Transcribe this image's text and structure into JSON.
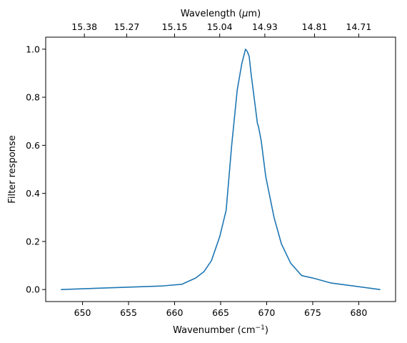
{
  "chart_data": {
    "type": "line",
    "xlabel": "Wavenumber (cm",
    "xlabel_sup": "−1",
    "xlabel_end": ")",
    "ylabel": "Filter response",
    "top_xlabel": "Wavelength (",
    "top_xlabel_mu": "μ",
    "top_xlabel_end": "m)",
    "xlim": [
      646.0,
      684.0
    ],
    "ylim": [
      -0.05,
      1.05
    ],
    "grid": false,
    "x_ticks": [
      650,
      655,
      660,
      665,
      670,
      675,
      680
    ],
    "y_ticks": [
      0.0,
      0.2,
      0.4,
      0.6,
      0.8,
      1.0
    ],
    "y_tick_labels": [
      "0.0",
      "0.2",
      "0.4",
      "0.6",
      "0.8",
      "1.0"
    ],
    "top_ticks": [
      {
        "x": 650.2,
        "label": "15.38"
      },
      {
        "x": 654.8,
        "label": "15.27"
      },
      {
        "x": 660.0,
        "label": "15.15"
      },
      {
        "x": 664.9,
        "label": "15.04"
      },
      {
        "x": 669.8,
        "label": "14.93"
      },
      {
        "x": 675.2,
        "label": "14.81"
      },
      {
        "x": 680.0,
        "label": "14.71"
      }
    ],
    "series": [
      {
        "color": "#1f77b4",
        "x": [
          647.7,
          658.7,
          660.8,
          662.3,
          663.2,
          664.0,
          664.9,
          665.6,
          666.2,
          666.8,
          667.3,
          667.7,
          667.9,
          668.1,
          668.3,
          668.6,
          669.0,
          669.1,
          669.4,
          669.9,
          670.8,
          671.6,
          672.6,
          673.8,
          675.0,
          677.0,
          682.3
        ],
        "y": [
          0.0,
          0.015,
          0.022,
          0.048,
          0.075,
          0.12,
          0.22,
          0.33,
          0.6,
          0.83,
          0.94,
          1.0,
          0.99,
          0.97,
          0.9,
          0.81,
          0.69,
          0.68,
          0.62,
          0.47,
          0.3,
          0.19,
          0.11,
          0.058,
          0.048,
          0.027,
          0.0
        ]
      }
    ]
  }
}
